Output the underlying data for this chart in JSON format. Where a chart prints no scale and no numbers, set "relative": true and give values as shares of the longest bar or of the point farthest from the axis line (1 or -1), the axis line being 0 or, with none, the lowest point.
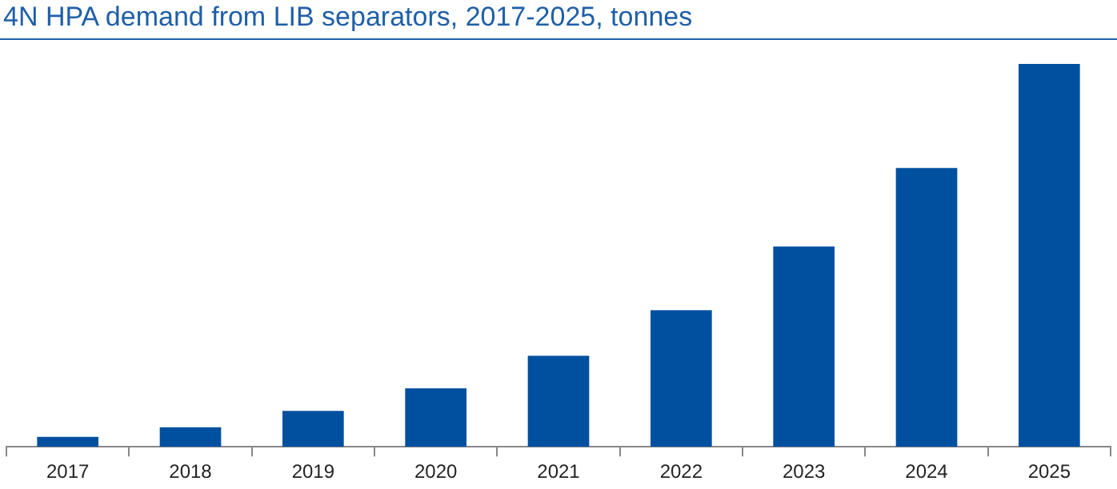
{
  "chart_data": {
    "type": "bar",
    "title": "4N HPA demand from LIB separators, 2017-2025, tonnes",
    "categories": [
      "2017",
      "2018",
      "2019",
      "2020",
      "2021",
      "2022",
      "2023",
      "2024",
      "2025"
    ],
    "values": [
      0.026,
      0.051,
      0.094,
      0.153,
      0.238,
      0.357,
      0.523,
      0.728,
      1
    ],
    "color": "#0050a0",
    "relative": true,
    "grid": false,
    "legend": false
  }
}
